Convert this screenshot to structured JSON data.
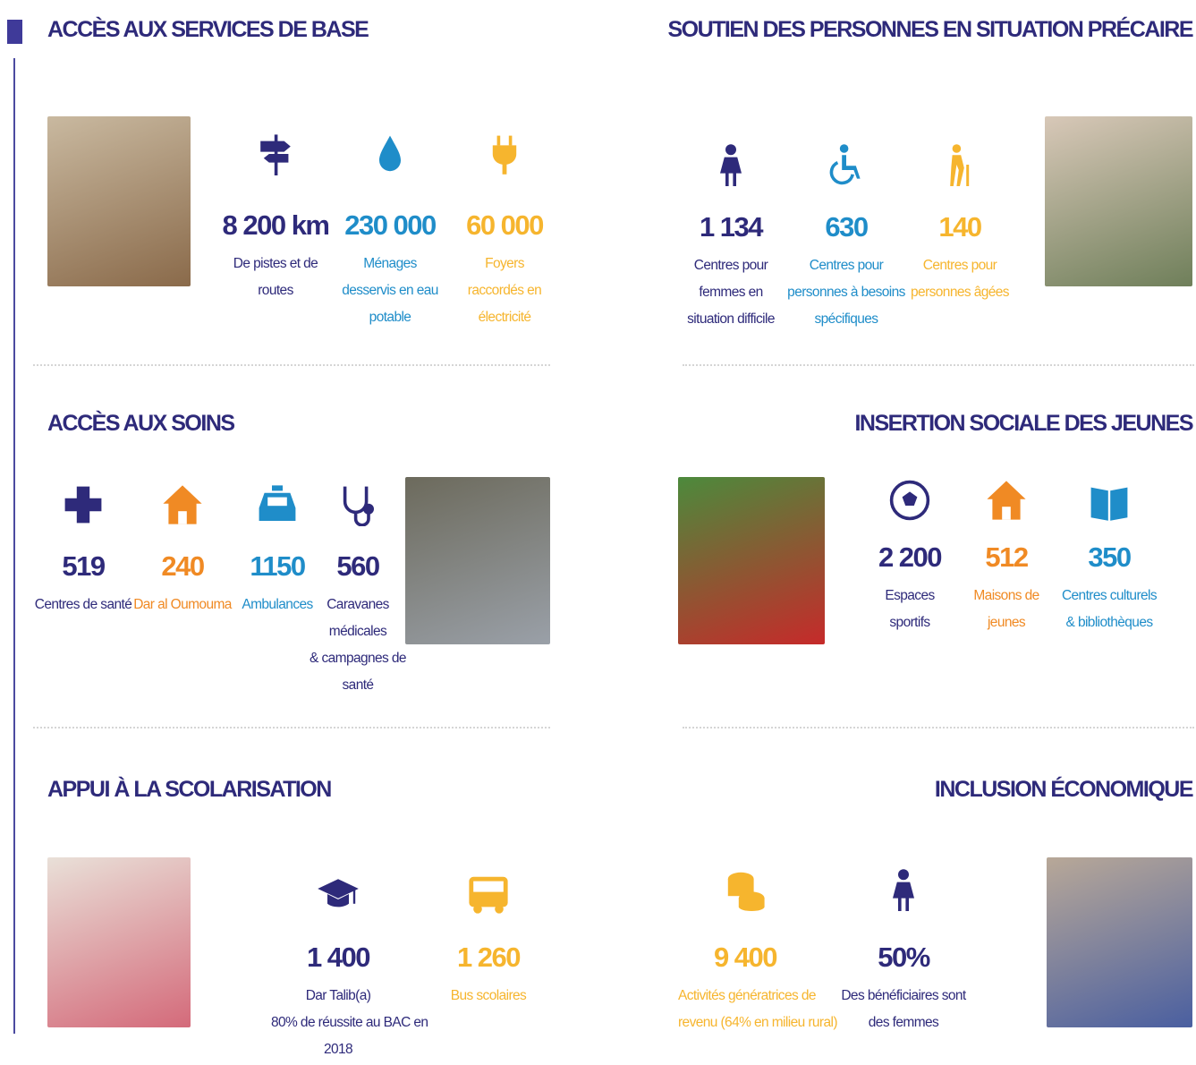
{
  "sections": [
    {
      "title": "ACCÈS AUX SERVICES DE BASE",
      "stats": [
        {
          "value": "8 200 km",
          "label": [
            "De pistes et de",
            "routes"
          ],
          "color": "#2e2a7a"
        },
        {
          "value": "230 000",
          "label": [
            "Ménages",
            "desservis  en eau",
            "potable"
          ],
          "color": "#1f8dc9"
        },
        {
          "value": "60 000",
          "label": [
            "Foyers",
            "raccordés  en",
            "électricité"
          ],
          "color": "#f6b52e"
        }
      ]
    },
    {
      "title": "SOUTIEN DES PERSONNES EN SITUATION PRÉCAIRE",
      "stats": [
        {
          "value": "1 134",
          "label": [
            "Centres pour",
            "femmes en",
            "situation difficile"
          ],
          "color": "#2e2a7a"
        },
        {
          "value": "630",
          "label": [
            "Centres pour",
            "personnes à  besoins",
            "spécifiques"
          ],
          "color": "#1f8dc9"
        },
        {
          "value": "140",
          "label": [
            "Centres pour",
            "personnes âgées"
          ],
          "color": "#f6b52e"
        }
      ]
    },
    {
      "title": "ACCÈS AUX SOINS",
      "stats": [
        {
          "value": "519",
          "label": [
            "Centres de santé"
          ],
          "color": "#2e2a7a"
        },
        {
          "value": "240",
          "label": [
            "Dar al Oumouma"
          ],
          "color": "#f08a24"
        },
        {
          "value": "1150",
          "label": [
            "Ambulances"
          ],
          "color": "#1f8dc9"
        },
        {
          "value": "560",
          "label": [
            "Caravanes",
            "médicales",
            "& campagnes de",
            "santé"
          ],
          "color": "#2e2a7a"
        }
      ]
    },
    {
      "title": "INSERTION SOCIALE DES JEUNES",
      "stats": [
        {
          "value": "2 200",
          "label": [
            "Espaces",
            "sportifs"
          ],
          "color": "#2e2a7a"
        },
        {
          "value": "512",
          "label": [
            "Maisons de",
            "jeunes"
          ],
          "color": "#f08a24"
        },
        {
          "value": "350",
          "label": [
            "Centres culturels",
            "& bibliothèques"
          ],
          "color": "#1f8dc9"
        }
      ]
    },
    {
      "title": "APPUI À LA SCOLARISATION",
      "stats": [
        {
          "value": "1 400",
          "label": [
            "Dar Talib(a)",
            "80% de réussite au BAC en",
            "2018"
          ],
          "color": "#2e2a7a"
        },
        {
          "value": "1 260",
          "label": [
            "Bus scolaires"
          ],
          "color": "#f6b52e"
        }
      ]
    },
    {
      "title": "INCLUSION ÉCONOMIQUE",
      "stats": [
        {
          "value": "9 400",
          "label": [
            "Activités génératrices de",
            "revenu (64% en milieu rural)"
          ],
          "color": "#f6b52e"
        },
        {
          "value": "50%",
          "label": [
            "Des bénéficiaires sont",
            "des  femmes"
          ],
          "color": "#2e2a7a"
        }
      ]
    }
  ]
}
